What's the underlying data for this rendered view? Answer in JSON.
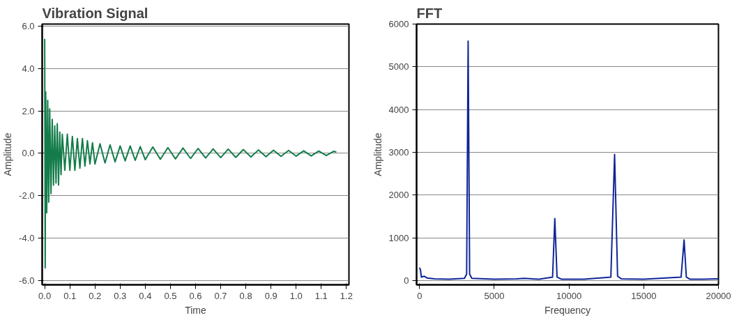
{
  "chart_data": [
    {
      "type": "line",
      "title": "Vibration Signal",
      "xlabel": "Time",
      "ylabel": "Amplitude",
      "xlim": [
        -0.01,
        1.21
      ],
      "ylim": [
        -6.2,
        6.1
      ],
      "xticks": [
        {
          "value": 0,
          "label": "0.0"
        },
        {
          "value": 0.1,
          "label": "0.1"
        },
        {
          "value": 0.2,
          "label": "0.2"
        },
        {
          "value": 0.3,
          "label": "0.3"
        },
        {
          "value": 0.4,
          "label": "0.4"
        },
        {
          "value": 0.5,
          "label": "0.5"
        },
        {
          "value": 0.6,
          "label": "0.6"
        },
        {
          "value": 0.7,
          "label": "0.7"
        },
        {
          "value": 0.8,
          "label": "0.8"
        },
        {
          "value": 0.9,
          "label": "0.9"
        },
        {
          "value": 1,
          "label": "1.0"
        },
        {
          "value": 1.1,
          "label": "1.1"
        },
        {
          "value": 1.2,
          "label": "1.2"
        }
      ],
      "yticks": [
        {
          "value": -6,
          "label": "-6.0"
        },
        {
          "value": -4,
          "label": "-4.0"
        },
        {
          "value": -2,
          "label": "-2.0"
        },
        {
          "value": 0,
          "label": "0.0"
        },
        {
          "value": 2,
          "label": "2.0"
        },
        {
          "value": 4,
          "label": "4.0"
        },
        {
          "value": 6,
          "label": "6.0"
        }
      ],
      "grid": "y",
      "series": [
        {
          "color": "#137c4a",
          "x": [
            0,
            0.002,
            0.004,
            0.008,
            0.012,
            0.016,
            0.02,
            0.025,
            0.03,
            0.035,
            0.04,
            0.045,
            0.05,
            0.055,
            0.06,
            0.065,
            0.07,
            0.08,
            0.09,
            0.1,
            0.11,
            0.12,
            0.13,
            0.14,
            0.15,
            0.16,
            0.17,
            0.18,
            0.19,
            0.2,
            0.22,
            0.24,
            0.26,
            0.28,
            0.3,
            0.32,
            0.34,
            0.36,
            0.38,
            0.4,
            0.43,
            0.46,
            0.49,
            0.52,
            0.55,
            0.58,
            0.61,
            0.64,
            0.67,
            0.7,
            0.73,
            0.76,
            0.79,
            0.82,
            0.85,
            0.88,
            0.91,
            0.94,
            0.97,
            1.0,
            1.03,
            1.06,
            1.09,
            1.12,
            1.15,
            1.16
          ],
          "values": [
            5.4,
            -5.4,
            2.9,
            -2.8,
            2.5,
            -2.3,
            2.1,
            -1.9,
            1.6,
            -1.5,
            1.3,
            -1.4,
            1.4,
            -1.5,
            1.0,
            -1.0,
            0.9,
            -0.8,
            0.9,
            -0.8,
            0.8,
            -0.8,
            0.7,
            -0.7,
            0.7,
            -0.6,
            0.6,
            -0.5,
            0.5,
            -0.5,
            0.45,
            -0.45,
            0.4,
            -0.4,
            0.35,
            -0.35,
            0.35,
            -0.33,
            0.32,
            -0.3,
            0.3,
            -0.28,
            0.27,
            -0.26,
            0.25,
            -0.24,
            0.23,
            -0.22,
            0.21,
            -0.2,
            0.2,
            -0.19,
            0.18,
            -0.17,
            0.16,
            -0.16,
            0.15,
            -0.14,
            0.14,
            -0.13,
            0.12,
            -0.12,
            0.11,
            -0.1,
            0.1,
            0.06
          ]
        }
      ]
    },
    {
      "type": "line",
      "title": "FFT",
      "xlabel": "Frequency",
      "ylabel": "Amplitude",
      "xlim": [
        -200,
        20000
      ],
      "ylim": [
        -100,
        6000
      ],
      "xticks": [
        0,
        5000,
        10000,
        15000,
        20000
      ],
      "yticks": [
        0,
        1000,
        2000,
        3000,
        4000,
        5000,
        6000
      ],
      "grid": "y",
      "series": [
        {
          "color": "#0f2596",
          "x": [
            0,
            60,
            120,
            300,
            500,
            1000,
            2000,
            3000,
            3150,
            3250,
            3350,
            3500,
            5000,
            6500,
            7000,
            8000,
            8900,
            9050,
            9200,
            9500,
            11000,
            12800,
            13050,
            13250,
            13500,
            15000,
            17500,
            17700,
            17850,
            18100,
            19000,
            20000
          ],
          "values": [
            300,
            250,
            80,
            100,
            60,
            40,
            30,
            50,
            150,
            5600,
            150,
            50,
            30,
            40,
            50,
            30,
            80,
            1450,
            80,
            30,
            30,
            80,
            2950,
            100,
            40,
            30,
            80,
            950,
            80,
            30,
            30,
            40
          ]
        }
      ]
    }
  ]
}
